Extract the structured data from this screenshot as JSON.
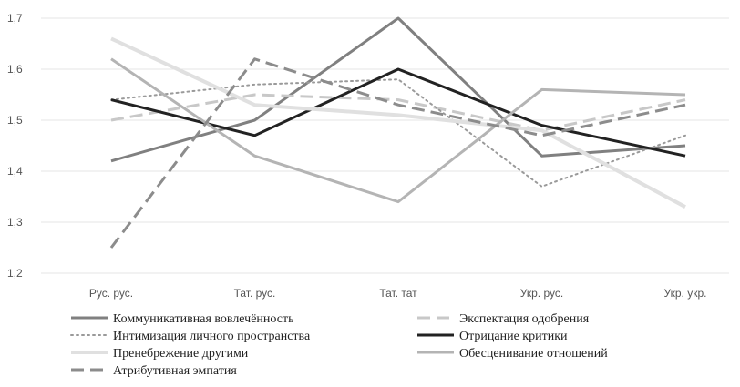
{
  "chart_data": {
    "type": "line",
    "categories": [
      "Рус. рус.",
      "Тат. рус.",
      "Тат. тат",
      "Укр. рус.",
      "Укр. укр."
    ],
    "ylim": [
      1.2,
      1.7
    ],
    "yticks": [
      "1,2",
      "1,3",
      "1,4",
      "1,5",
      "1,6",
      "1,7"
    ],
    "grid": "horizontal",
    "legend_position": "bottom",
    "series": [
      {
        "name": "Коммуникативная вовлечённость",
        "values": [
          1.42,
          1.5,
          1.7,
          1.43,
          1.45
        ],
        "color": "#808080",
        "dash": "solid",
        "width": 3
      },
      {
        "name": "Экспектация одобрения",
        "values": [
          1.5,
          1.55,
          1.54,
          1.48,
          1.54
        ],
        "color": "#c8c8c8",
        "dash": "dashed",
        "width": 3
      },
      {
        "name": "Интимизация личного пространства",
        "values": [
          1.54,
          1.57,
          1.58,
          1.37,
          1.47
        ],
        "color": "#9a9a9a",
        "dash": "dotted",
        "width": 2
      },
      {
        "name": "Отрицание критики",
        "values": [
          1.54,
          1.47,
          1.6,
          1.49,
          1.43
        ],
        "color": "#222222",
        "dash": "solid",
        "width": 3
      },
      {
        "name": "Пренебрежение другими",
        "values": [
          1.66,
          1.53,
          1.51,
          1.48,
          1.33
        ],
        "color": "#e0e0e0",
        "dash": "solid",
        "width": 4
      },
      {
        "name": "Обесценивание отношений",
        "values": [
          1.62,
          1.43,
          1.34,
          1.56,
          1.55
        ],
        "color": "#b4b4b4",
        "dash": "solid",
        "width": 3
      },
      {
        "name": "Атрибутивная эмпатия",
        "values": [
          1.25,
          1.62,
          1.53,
          1.47,
          1.53
        ],
        "color": "#8c8c8c",
        "dash": "dashed",
        "width": 3
      }
    ]
  }
}
